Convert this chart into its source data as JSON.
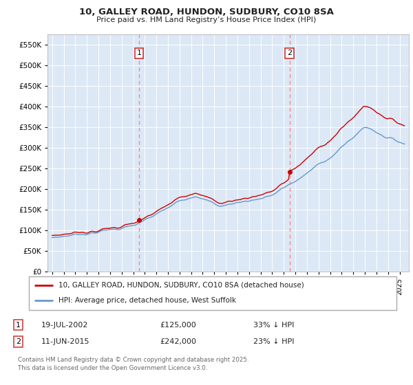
{
  "title": "10, GALLEY ROAD, HUNDON, SUDBURY, CO10 8SA",
  "subtitle": "Price paid vs. HM Land Registry’s House Price Index (HPI)",
  "legend_line1": "10, GALLEY ROAD, HUNDON, SUDBURY, CO10 8SA (detached house)",
  "legend_line2": "HPI: Average price, detached house, West Suffolk",
  "annotation1_label": "1",
  "annotation1_date": "19-JUL-2002",
  "annotation1_price": "£125,000",
  "annotation1_hpi": "33% ↓ HPI",
  "annotation2_label": "2",
  "annotation2_date": "11-JUN-2015",
  "annotation2_price": "£242,000",
  "annotation2_hpi": "23% ↓ HPI",
  "footer": "Contains HM Land Registry data © Crown copyright and database right 2025.\nThis data is licensed under the Open Government Licence v3.0.",
  "ylim": [
    0,
    575000
  ],
  "yticks": [
    0,
    50000,
    100000,
    150000,
    200000,
    250000,
    300000,
    350000,
    400000,
    450000,
    500000,
    550000
  ],
  "red_color": "#cc0000",
  "blue_color": "#6699cc",
  "annotation_vline_color": "#ff8888",
  "background_color": "#ffffff",
  "plot_bg_color": "#dce8f5",
  "grid_color": "#ffffff"
}
